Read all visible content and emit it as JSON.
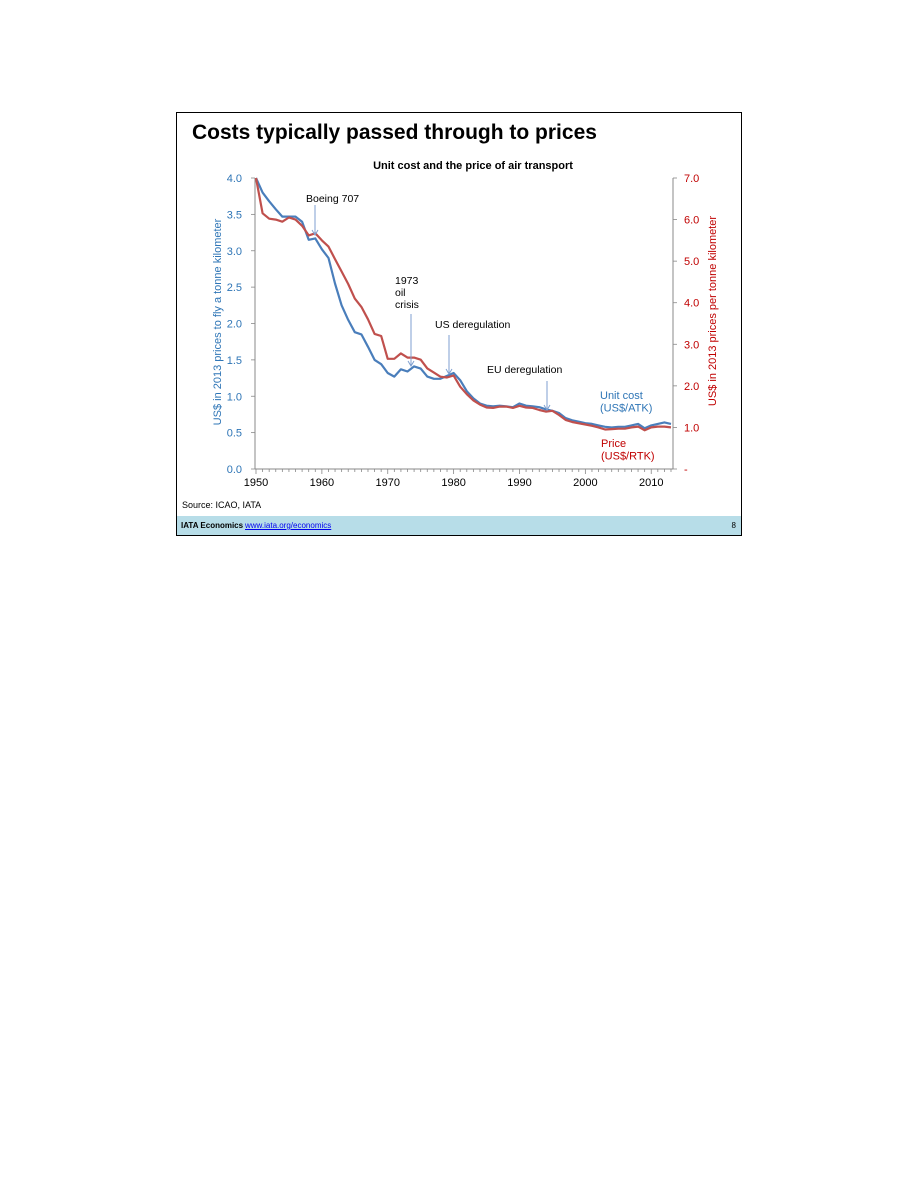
{
  "slide": {
    "title": "Costs typically passed through to prices",
    "source": "Source: ICAO, IATA",
    "footer_org": "IATA Economics",
    "footer_link": "www.iata.org/economics",
    "page_number": "8"
  },
  "chart_data": {
    "type": "line",
    "title": "Unit cost and the price of air transport",
    "ylabel_left": "US$ in 2013 prices to fly a tonne kilometer",
    "ylabel_right": "US$ in 2013 prices per tonne kilometer",
    "xlim": [
      1950,
      2013
    ],
    "x_ticks": [
      "1950",
      "1960",
      "1970",
      "1980",
      "1990",
      "2000",
      "2010"
    ],
    "ylim_left": [
      0,
      4.0
    ],
    "y_ticks_left": [
      "0.0",
      "0.5",
      "1.0",
      "1.5",
      "2.0",
      "2.5",
      "3.0",
      "3.5",
      "4.0"
    ],
    "ylim_right": [
      0,
      7.0
    ],
    "y_ticks_right": [
      "-",
      "1.0",
      "2.0",
      "3.0",
      "4.0",
      "5.0",
      "6.0",
      "7.0"
    ],
    "grid": false,
    "series": [
      {
        "name": "Unit cost (US$/ATK)",
        "label_lines": [
          "Unit cost",
          "(US$/ATK)"
        ],
        "axis": "left",
        "color": "#4a7ebb",
        "x": [
          1950,
          1951,
          1952,
          1953,
          1954,
          1955,
          1956,
          1957,
          1958,
          1959,
          1960,
          1961,
          1962,
          1963,
          1964,
          1965,
          1966,
          1967,
          1968,
          1969,
          1970,
          1971,
          1972,
          1973,
          1974,
          1975,
          1976,
          1977,
          1978,
          1979,
          1980,
          1981,
          1982,
          1983,
          1984,
          1985,
          1986,
          1987,
          1988,
          1989,
          1990,
          1991,
          1992,
          1993,
          1994,
          1995,
          1996,
          1997,
          1998,
          1999,
          2000,
          2001,
          2002,
          2003,
          2004,
          2005,
          2006,
          2007,
          2008,
          2009,
          2010,
          2011,
          2012,
          2013
        ],
        "y": [
          4.0,
          3.8,
          3.68,
          3.57,
          3.47,
          3.47,
          3.47,
          3.4,
          3.15,
          3.17,
          3.02,
          2.9,
          2.55,
          2.25,
          2.05,
          1.88,
          1.85,
          1.68,
          1.5,
          1.44,
          1.32,
          1.27,
          1.37,
          1.34,
          1.41,
          1.38,
          1.27,
          1.24,
          1.24,
          1.28,
          1.32,
          1.22,
          1.07,
          0.97,
          0.9,
          0.87,
          0.86,
          0.87,
          0.86,
          0.85,
          0.9,
          0.87,
          0.86,
          0.85,
          0.82,
          0.8,
          0.77,
          0.7,
          0.67,
          0.65,
          0.63,
          0.62,
          0.6,
          0.58,
          0.57,
          0.58,
          0.58,
          0.6,
          0.62,
          0.56,
          0.6,
          0.62,
          0.64,
          0.62
        ]
      },
      {
        "name": "Price (US$/RTK)",
        "label_lines": [
          "Price",
          "(US$/RTK)"
        ],
        "axis": "right",
        "color": "#c0504d",
        "x": [
          1950,
          1951,
          1952,
          1953,
          1954,
          1955,
          1956,
          1957,
          1958,
          1959,
          1960,
          1961,
          1962,
          1963,
          1964,
          1965,
          1966,
          1967,
          1968,
          1969,
          1970,
          1971,
          1972,
          1973,
          1974,
          1975,
          1976,
          1977,
          1978,
          1979,
          1980,
          1981,
          1982,
          1983,
          1984,
          1985,
          1986,
          1987,
          1988,
          1989,
          1990,
          1991,
          1992,
          1993,
          1994,
          1995,
          1996,
          1997,
          1998,
          1999,
          2000,
          2001,
          2002,
          2003,
          2004,
          2005,
          2006,
          2007,
          2008,
          2009,
          2010,
          2011,
          2012,
          2013
        ],
        "y": [
          7.0,
          6.15,
          6.02,
          6.0,
          5.95,
          6.05,
          6.0,
          5.85,
          5.62,
          5.67,
          5.5,
          5.35,
          5.05,
          4.75,
          4.45,
          4.1,
          3.9,
          3.6,
          3.25,
          3.2,
          2.65,
          2.65,
          2.78,
          2.68,
          2.68,
          2.63,
          2.42,
          2.32,
          2.22,
          2.2,
          2.25,
          1.98,
          1.8,
          1.65,
          1.55,
          1.48,
          1.47,
          1.5,
          1.5,
          1.47,
          1.52,
          1.48,
          1.47,
          1.42,
          1.38,
          1.4,
          1.3,
          1.18,
          1.13,
          1.1,
          1.07,
          1.04,
          1.0,
          0.95,
          0.96,
          0.97,
          0.97,
          1.0,
          1.02,
          0.93,
          1.0,
          1.02,
          1.02,
          1.0
        ]
      }
    ],
    "annotations": [
      {
        "lines": [
          "Boeing 707"
        ],
        "x": 1959
      },
      {
        "lines": [
          "1973",
          "oil",
          "crisis"
        ],
        "x": 1974
      },
      {
        "lines": [
          "US deregulation"
        ],
        "x": 1980
      },
      {
        "lines": [
          "EU deregulation"
        ],
        "x": 1995
      }
    ]
  }
}
